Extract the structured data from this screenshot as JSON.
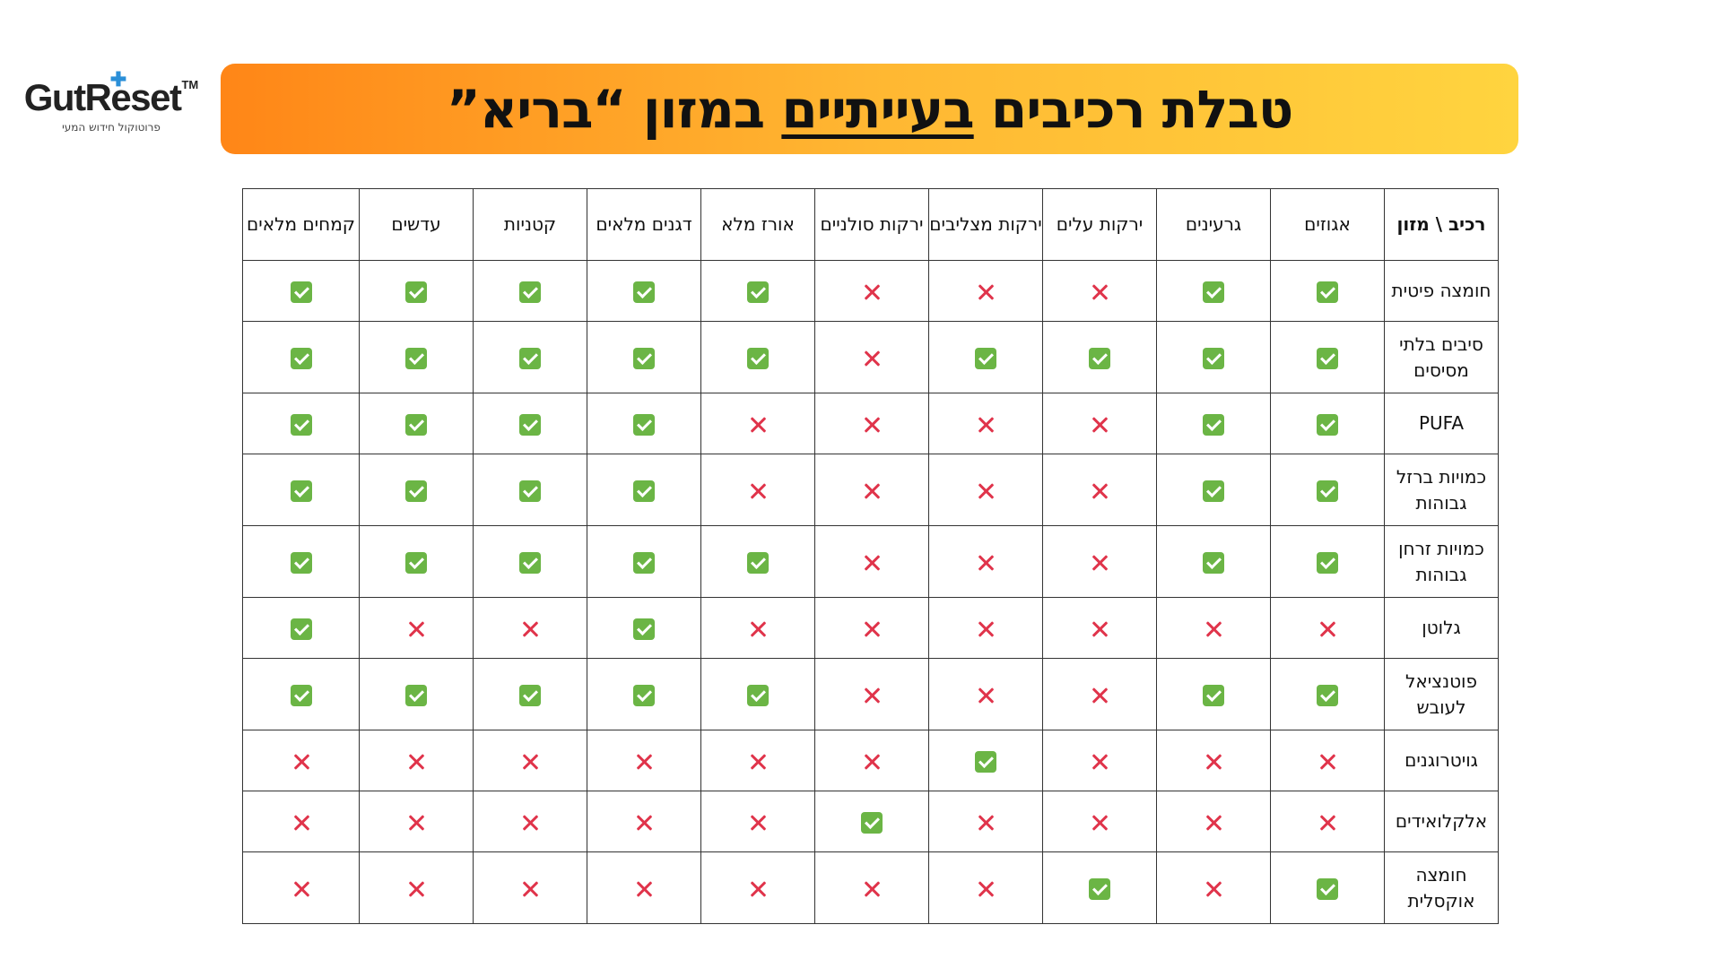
{
  "logo": {
    "brand": "GutReset",
    "tm": "TM",
    "tagline": "פרוטוקול חידוש המעי"
  },
  "title": {
    "part1": "טבלת רכיבים ",
    "underlined": "בעייתיים",
    "part2": " במזון “בריא”"
  },
  "table": {
    "corner": "רכיב \\ מזון",
    "columns": [
      "אגוזים",
      "גרעינים",
      "ירקות עלים",
      "ירקות מצליבים",
      "ירקות סולניים",
      "אורז מלא",
      "דגנים מלאים",
      "קטניות",
      "עדשים",
      "קמחים מלאים"
    ],
    "rows": [
      {
        "label": "חומצה פיטית",
        "marks": [
          true,
          true,
          false,
          false,
          false,
          true,
          true,
          true,
          true,
          true
        ]
      },
      {
        "label": "סיבים בלתי מסיסים",
        "marks": [
          true,
          true,
          true,
          true,
          false,
          true,
          true,
          true,
          true,
          true
        ]
      },
      {
        "label": "PUFA",
        "marks": [
          true,
          true,
          false,
          false,
          false,
          false,
          true,
          true,
          true,
          true
        ]
      },
      {
        "label": "כמויות ברזל גבוהות",
        "marks": [
          true,
          true,
          false,
          false,
          false,
          false,
          true,
          true,
          true,
          true
        ]
      },
      {
        "label": "כמויות זרחן גבוהות",
        "marks": [
          true,
          true,
          false,
          false,
          false,
          true,
          true,
          true,
          true,
          true
        ]
      },
      {
        "label": "גלוטן",
        "marks": [
          false,
          false,
          false,
          false,
          false,
          false,
          true,
          false,
          false,
          true
        ]
      },
      {
        "label": "פוטנציאל לעובש",
        "marks": [
          true,
          true,
          false,
          false,
          false,
          true,
          true,
          true,
          true,
          true
        ]
      },
      {
        "label": "גויטרוגנים",
        "marks": [
          false,
          false,
          false,
          true,
          false,
          false,
          false,
          false,
          false,
          false
        ]
      },
      {
        "label": "אלקלואידים",
        "marks": [
          false,
          false,
          false,
          false,
          true,
          false,
          false,
          false,
          false,
          false
        ]
      },
      {
        "label": "חומצה אוקסלית",
        "marks": [
          true,
          false,
          true,
          false,
          false,
          false,
          false,
          false,
          false,
          false
        ]
      }
    ]
  },
  "icons": {
    "yes": "green-check-icon",
    "no": "red-x-icon"
  },
  "colors": {
    "banner_start": "#ff8617",
    "banner_end": "#ffd43f",
    "check_green": "#6bb545",
    "x_red": "#e0344b",
    "logo_plus": "#2a8fd8"
  }
}
